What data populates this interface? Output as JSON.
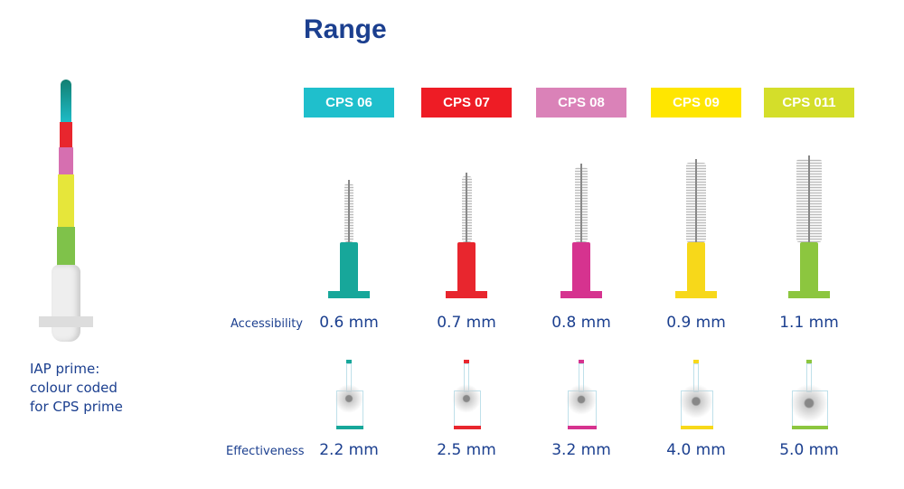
{
  "title": "Range",
  "caption": {
    "lines": [
      "IAP prime:",
      "colour coded",
      "for CPS prime"
    ]
  },
  "row_labels": {
    "accessibility": "Accessibility",
    "effectiveness": "Effectiveness"
  },
  "products": [
    {
      "name": "CPS 06",
      "color": "#1fbfcc",
      "handle": "#17a79a",
      "accessibility": "0.6 mm",
      "effectiveness": "2.2 mm"
    },
    {
      "name": "CPS 07",
      "color": "#ee1c25",
      "handle": "#e8262e",
      "accessibility": "0.7 mm",
      "effectiveness": "2.5 mm"
    },
    {
      "name": "CPS 08",
      "color": "#da82b8",
      "handle": "#d6338f",
      "accessibility": "0.8 mm",
      "effectiveness": "3.2 mm"
    },
    {
      "name": "CPS 09",
      "color": "#ffe600",
      "handle": "#f7d81a",
      "accessibility": "0.9 mm",
      "effectiveness": "4.0 mm"
    },
    {
      "name": "CPS 011",
      "color": "#d4de2a",
      "handle": "#8cc63f",
      "accessibility": "1.1 mm",
      "effectiveness": "5.0 mm"
    }
  ]
}
